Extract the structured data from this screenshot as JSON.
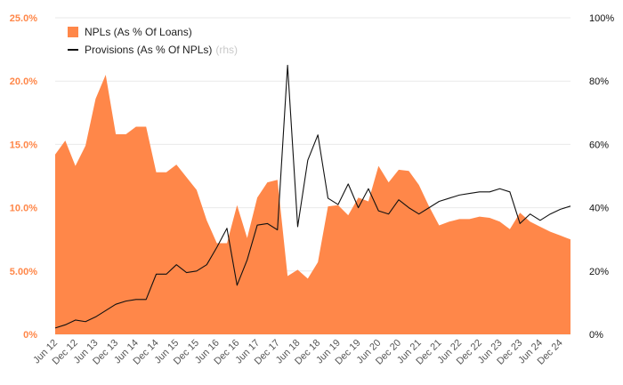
{
  "chart_data": {
    "type": "area",
    "x": [
      "Jun 12",
      "Sep 12",
      "Dec 12",
      "Mar 13",
      "Jun 13",
      "Sep 13",
      "Dec 13",
      "Mar 14",
      "Jun 14",
      "Sep 14",
      "Dec 14",
      "Mar 15",
      "Jun 15",
      "Sep 15",
      "Dec 15",
      "Mar 16",
      "Jun 16",
      "Sep 16",
      "Dec 16",
      "Mar 17",
      "Jun 17",
      "Sep 17",
      "Dec 17",
      "Mar 18",
      "Jun 18",
      "Sep 18",
      "Dec 18",
      "Mar 19",
      "Jun 19",
      "Sep 19",
      "Dec 19",
      "Mar 20",
      "Jun 20",
      "Sep 20",
      "Dec 20",
      "Mar 21",
      "Jun 21",
      "Sep 21",
      "Dec 21",
      "Mar 22",
      "Jun 22",
      "Sep 22",
      "Dec 22",
      "Mar 23",
      "Jun 23",
      "Sep 23",
      "Dec 23",
      "Mar 24",
      "Jun 24",
      "Sep 24",
      "Dec 24",
      "Mar 25"
    ],
    "x_tick_labels": [
      "Jun 12",
      "Dec 12",
      "Jun 13",
      "Dec 13",
      "Jun 14",
      "Dec 14",
      "Jun 15",
      "Dec 15",
      "Jun 16",
      "Dec 16",
      "Jun 17",
      "Dec 17",
      "Jun 18",
      "Dec 18",
      "Jun 19",
      "Dec 19",
      "Jun 20",
      "Dec 20",
      "Jun 21",
      "Dec 21",
      "Jun 22",
      "Dec 22",
      "Jun 23",
      "Dec 23",
      "Jun 24",
      "Dec 24"
    ],
    "series": [
      {
        "name": "NPLs (As % Of Loans)",
        "axis": "left",
        "style": "area",
        "color": "#ff8749",
        "values": [
          14.2,
          15.3,
          13.3,
          14.9,
          18.6,
          20.5,
          15.8,
          15.8,
          16.4,
          16.4,
          12.8,
          12.8,
          13.4,
          12.4,
          11.4,
          9.0,
          7.2,
          7.2,
          10.2,
          7.6,
          10.8,
          12.0,
          12.2,
          4.6,
          5.1,
          4.4,
          5.7,
          10.1,
          10.2,
          9.4,
          10.8,
          10.5,
          13.3,
          12.0,
          13.0,
          12.9,
          11.8,
          10.1,
          8.6,
          8.9,
          9.1,
          9.1,
          9.3,
          9.2,
          8.9,
          8.3,
          9.6,
          8.9,
          8.5,
          8.1,
          7.8,
          7.5
        ]
      },
      {
        "name": "Provisions (As % Of NPLs)",
        "name_suffix": "(rhs)",
        "axis": "right",
        "style": "line",
        "color": "#111111",
        "values": [
          2,
          3,
          4.5,
          4,
          5.5,
          7.5,
          9.5,
          10.5,
          11,
          11,
          19,
          19,
          22,
          19.5,
          20,
          22,
          27.5,
          33.5,
          15.5,
          23.5,
          34.5,
          35,
          33,
          85,
          34,
          55,
          63,
          43,
          41,
          47.5,
          40,
          46,
          39,
          38,
          42.5,
          40,
          38,
          40,
          42,
          43,
          44,
          44.5,
          45,
          45,
          46,
          45,
          35,
          38,
          36,
          38,
          39.5,
          40.5
        ]
      }
    ],
    "y_left": {
      "ylim": [
        0,
        25
      ],
      "ticks": [
        "0%",
        "5.00%",
        "10.0%",
        "15.0%",
        "20.0%",
        "25.0%"
      ],
      "tick_values": [
        0,
        5,
        10,
        15,
        20,
        25
      ],
      "color": "#ff8749"
    },
    "y_right": {
      "ylim": [
        0,
        100
      ],
      "ticks": [
        "0%",
        "20%",
        "40%",
        "60%",
        "80%",
        "100%"
      ],
      "tick_values": [
        0,
        20,
        40,
        60,
        80,
        100
      ],
      "color": "#111111"
    },
    "grid": true,
    "legend_position": "top-left"
  }
}
